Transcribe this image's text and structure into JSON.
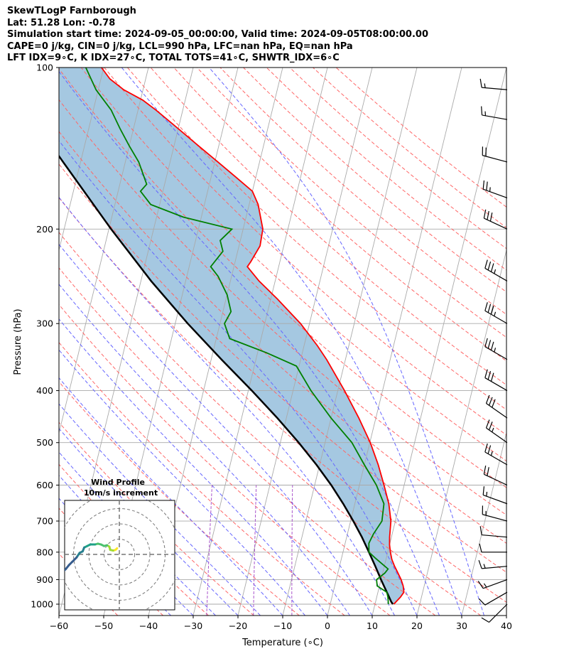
{
  "header": {
    "line1": "SkewTLogP Farnborough",
    "line2": "Lat: 51.28   Lon: -0.78",
    "line3": "Simulation start time: 2024-09-05_00:00:00, Valid time: 2024-09-05T08:00:00.00",
    "line4": "CAPE=0 j/kg, CIN=0 j/kg, LCL=990 hPa, LFC=nan hPa, EQ=nan hPa",
    "line5": "LFT IDX=9∘C, K IDX=27∘C, TOTAL TOTS=41∘C, SHWTR_IDX=6∘C"
  },
  "axes": {
    "xlabel": "Temperature (∘C)",
    "ylabel": "Pressure (hPa)"
  },
  "hodograph": {
    "title_line1": "Wind Profile",
    "title_line2": "10m/s increment"
  },
  "colors": {
    "temperature": "#ff0000",
    "dewpoint": "#008000",
    "parcel": "#000000",
    "cape_fill": "#7fb0d4",
    "dry_adiabat": "#ff6666",
    "moist_adiabat": "#6666ff",
    "mixing_ratio": "#aa55cc",
    "isotherm": "#aaaaaa"
  },
  "chart_data": {
    "type": "line",
    "skew": true,
    "xlim": [
      -60,
      40
    ],
    "ylim": [
      1050,
      100
    ],
    "y_scale": "log",
    "x_ticks": [
      -60,
      -50,
      -40,
      -30,
      -20,
      -10,
      0,
      10,
      20,
      30,
      40
    ],
    "y_ticks": [
      100,
      200,
      300,
      400,
      500,
      600,
      700,
      800,
      900,
      1000
    ],
    "grid": true,
    "series": [
      {
        "role": "temperature",
        "points": [
          [
            1000,
            14.2
          ],
          [
            970,
            15.3
          ],
          [
            950,
            15.8
          ],
          [
            925,
            15.3
          ],
          [
            900,
            14.5
          ],
          [
            870,
            13.2
          ],
          [
            850,
            12.3
          ],
          [
            825,
            11.3
          ],
          [
            800,
            10.6
          ],
          [
            775,
            10.0
          ],
          [
            750,
            9.6
          ],
          [
            700,
            9.0
          ],
          [
            650,
            7.6
          ],
          [
            600,
            5.5
          ],
          [
            550,
            3.1
          ],
          [
            500,
            0.1
          ],
          [
            450,
            -3.8
          ],
          [
            400,
            -8.5
          ],
          [
            350,
            -14.2
          ],
          [
            330,
            -17.0
          ],
          [
            300,
            -22.0
          ],
          [
            270,
            -28.5
          ],
          [
            250,
            -33.6
          ],
          [
            235,
            -37.0
          ],
          [
            230,
            -36.5
          ],
          [
            215,
            -35.3
          ],
          [
            200,
            -35.6
          ],
          [
            180,
            -38.0
          ],
          [
            170,
            -40.0
          ],
          [
            160,
            -44.5
          ],
          [
            150,
            -49.3
          ],
          [
            140,
            -54.5
          ],
          [
            130,
            -60.0
          ],
          [
            120,
            -66.0
          ],
          [
            115,
            -69.5
          ],
          [
            110,
            -74.3
          ],
          [
            105,
            -78.0
          ],
          [
            100,
            -80.5
          ]
        ]
      },
      {
        "role": "dewpoint",
        "points": [
          [
            1000,
            13.0
          ],
          [
            970,
            12.5
          ],
          [
            950,
            12.0
          ],
          [
            925,
            9.5
          ],
          [
            900,
            9.0
          ],
          [
            875,
            10.5
          ],
          [
            860,
            11.0
          ],
          [
            820,
            7.5
          ],
          [
            800,
            5.8
          ],
          [
            770,
            5.3
          ],
          [
            740,
            5.8
          ],
          [
            700,
            7.0
          ],
          [
            650,
            6.5
          ],
          [
            600,
            3.8
          ],
          [
            550,
            0.0
          ],
          [
            500,
            -4.0
          ],
          [
            450,
            -10.0
          ],
          [
            400,
            -16.0
          ],
          [
            360,
            -20.6
          ],
          [
            340,
            -28.0
          ],
          [
            320,
            -37.0
          ],
          [
            300,
            -39.0
          ],
          [
            285,
            -38.2
          ],
          [
            265,
            -40.0
          ],
          [
            245,
            -43.0
          ],
          [
            235,
            -45.2
          ],
          [
            220,
            -43.3
          ],
          [
            210,
            -44.5
          ],
          [
            200,
            -42.5
          ],
          [
            190,
            -54.0
          ],
          [
            180,
            -62.0
          ],
          [
            170,
            -65.0
          ],
          [
            165,
            -64.0
          ],
          [
            150,
            -67.0
          ],
          [
            140,
            -70.0
          ],
          [
            130,
            -73.0
          ],
          [
            120,
            -76.0
          ],
          [
            110,
            -80.5
          ],
          [
            100,
            -84.0
          ]
        ]
      },
      {
        "role": "parcel",
        "points": [
          [
            1000,
            14.0
          ],
          [
            990,
            13.5
          ],
          [
            950,
            12.0
          ],
          [
            900,
            10.0
          ],
          [
            850,
            8.0
          ],
          [
            800,
            5.8
          ],
          [
            750,
            3.4
          ],
          [
            700,
            0.6
          ],
          [
            650,
            -2.6
          ],
          [
            600,
            -6.3
          ],
          [
            550,
            -10.7
          ],
          [
            500,
            -15.9
          ],
          [
            450,
            -22.0
          ],
          [
            400,
            -29.2
          ],
          [
            350,
            -37.7
          ],
          [
            300,
            -47.2
          ],
          [
            250,
            -57.7
          ],
          [
            200,
            -69.5
          ],
          [
            150,
            -83.9
          ],
          [
            120,
            -94.9
          ],
          [
            100,
            -104.0
          ]
        ]
      }
    ],
    "wind_barbs": [
      {
        "p": 1000,
        "dir": 225,
        "kt": 8
      },
      {
        "p": 950,
        "dir": 240,
        "kt": 12
      },
      {
        "p": 900,
        "dir": 250,
        "kt": 15
      },
      {
        "p": 850,
        "dir": 265,
        "kt": 15
      },
      {
        "p": 800,
        "dir": 270,
        "kt": 10
      },
      {
        "p": 750,
        "dir": 275,
        "kt": 10
      },
      {
        "p": 700,
        "dir": 285,
        "kt": 15
      },
      {
        "p": 650,
        "dir": 290,
        "kt": 15
      },
      {
        "p": 600,
        "dir": 295,
        "kt": 20
      },
      {
        "p": 550,
        "dir": 300,
        "kt": 25
      },
      {
        "p": 500,
        "dir": 305,
        "kt": 25
      },
      {
        "p": 450,
        "dir": 305,
        "kt": 30
      },
      {
        "p": 400,
        "dir": 300,
        "kt": 30
      },
      {
        "p": 350,
        "dir": 300,
        "kt": 35
      },
      {
        "p": 300,
        "dir": 300,
        "kt": 35
      },
      {
        "p": 250,
        "dir": 300,
        "kt": 35
      },
      {
        "p": 200,
        "dir": 295,
        "kt": 30
      },
      {
        "p": 175,
        "dir": 290,
        "kt": 25
      },
      {
        "p": 150,
        "dir": 285,
        "kt": 20
      },
      {
        "p": 125,
        "dir": 280,
        "kt": 15
      },
      {
        "p": 110,
        "dir": 275,
        "kt": 15
      }
    ],
    "hodograph_uv": [
      [
        -1.5,
        4.0
      ],
      [
        -2.5,
        3.0
      ],
      [
        -4.0,
        2.5
      ],
      [
        -6.0,
        3.0
      ],
      [
        -6.5,
        5.0
      ],
      [
        -8.0,
        6.0
      ],
      [
        -10.0,
        5.5
      ],
      [
        -12.0,
        6.5
      ],
      [
        -14.0,
        7.0
      ],
      [
        -16.0,
        6.5
      ],
      [
        -19.0,
        6.5
      ],
      [
        -21.0,
        5.5
      ],
      [
        -23.0,
        4.5
      ],
      [
        -24.0,
        2.0
      ],
      [
        -26.0,
        1.0
      ],
      [
        -28.0,
        -2.0
      ],
      [
        -31.0,
        -5.0
      ],
      [
        -33.0,
        -7.0
      ],
      [
        -35.0,
        -9.5
      ],
      [
        -36.5,
        -11.0
      ],
      [
        -37.5,
        -13.0
      ],
      [
        -39.0,
        -14.5
      ],
      [
        -40.5,
        -15.0
      ],
      [
        -41.5,
        -15.5
      ],
      [
        -40.5,
        -17.5
      ]
    ],
    "hodograph_rings": [
      10,
      20,
      30,
      40
    ]
  }
}
